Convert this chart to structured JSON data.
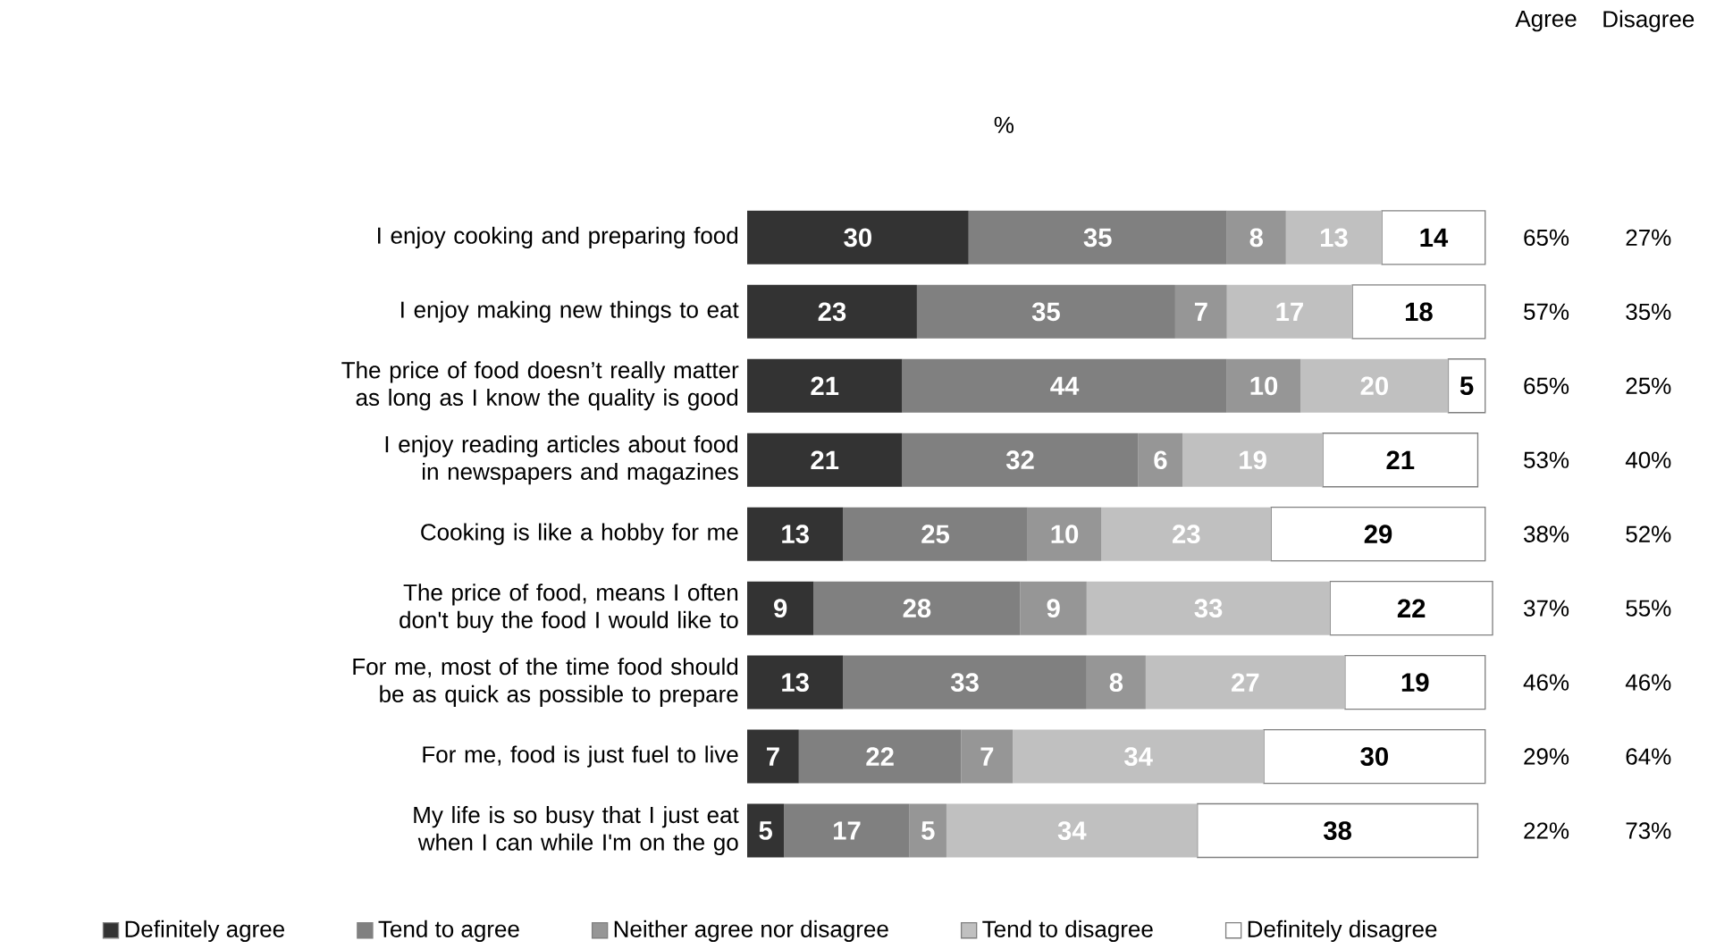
{
  "chart_data": {
    "type": "bar",
    "orientation": "horizontal",
    "stacked": true,
    "data_labels": true,
    "legend": "bottom",
    "tick_labels": "y",
    "xlabel": "%",
    "categories": [
      "I enjoy cooking and preparing food",
      "I enjoy making new things to eat",
      "The price of food doesn’t really matter as long as I know the quality is good",
      "I enjoy reading articles about food in newspapers and magazines",
      "Cooking is like a hobby for me",
      "The price of food, means I often don't buy the food I would like to",
      "For me, most of the time food should be as quick as possible to prepare",
      "For me, food is just fuel to live",
      "My life is so busy that I just eat when I can while I'm on the go"
    ],
    "series": [
      {
        "name": "Definitely agree",
        "color": "#333333",
        "values": [
          30,
          23,
          21,
          21,
          13,
          9,
          13,
          7,
          5
        ]
      },
      {
        "name": "Tend to agree",
        "color": "#808080",
        "values": [
          35,
          35,
          44,
          32,
          25,
          28,
          33,
          22,
          17
        ]
      },
      {
        "name": "Neither agree nor disagree",
        "color": "#969696",
        "values": [
          8,
          7,
          10,
          6,
          10,
          9,
          8,
          7,
          5
        ]
      },
      {
        "name": "Tend to disagree",
        "color": "#c0c0c0",
        "values": [
          13,
          17,
          20,
          19,
          23,
          33,
          27,
          34,
          34
        ]
      },
      {
        "name": "Definitely disagree",
        "color": "#ffffff",
        "values": [
          14,
          18,
          5,
          21,
          29,
          22,
          19,
          30,
          38
        ]
      }
    ],
    "annotations": [
      "Agree",
      "Disagree",
      "65%",
      "27%",
      "57%",
      "35%",
      "65%",
      "25%",
      "53%",
      "40%",
      "38%",
      "52%",
      "37%",
      "55%",
      "46%",
      "46%",
      "29%",
      "64%",
      "22%",
      "73%"
    ]
  }
}
